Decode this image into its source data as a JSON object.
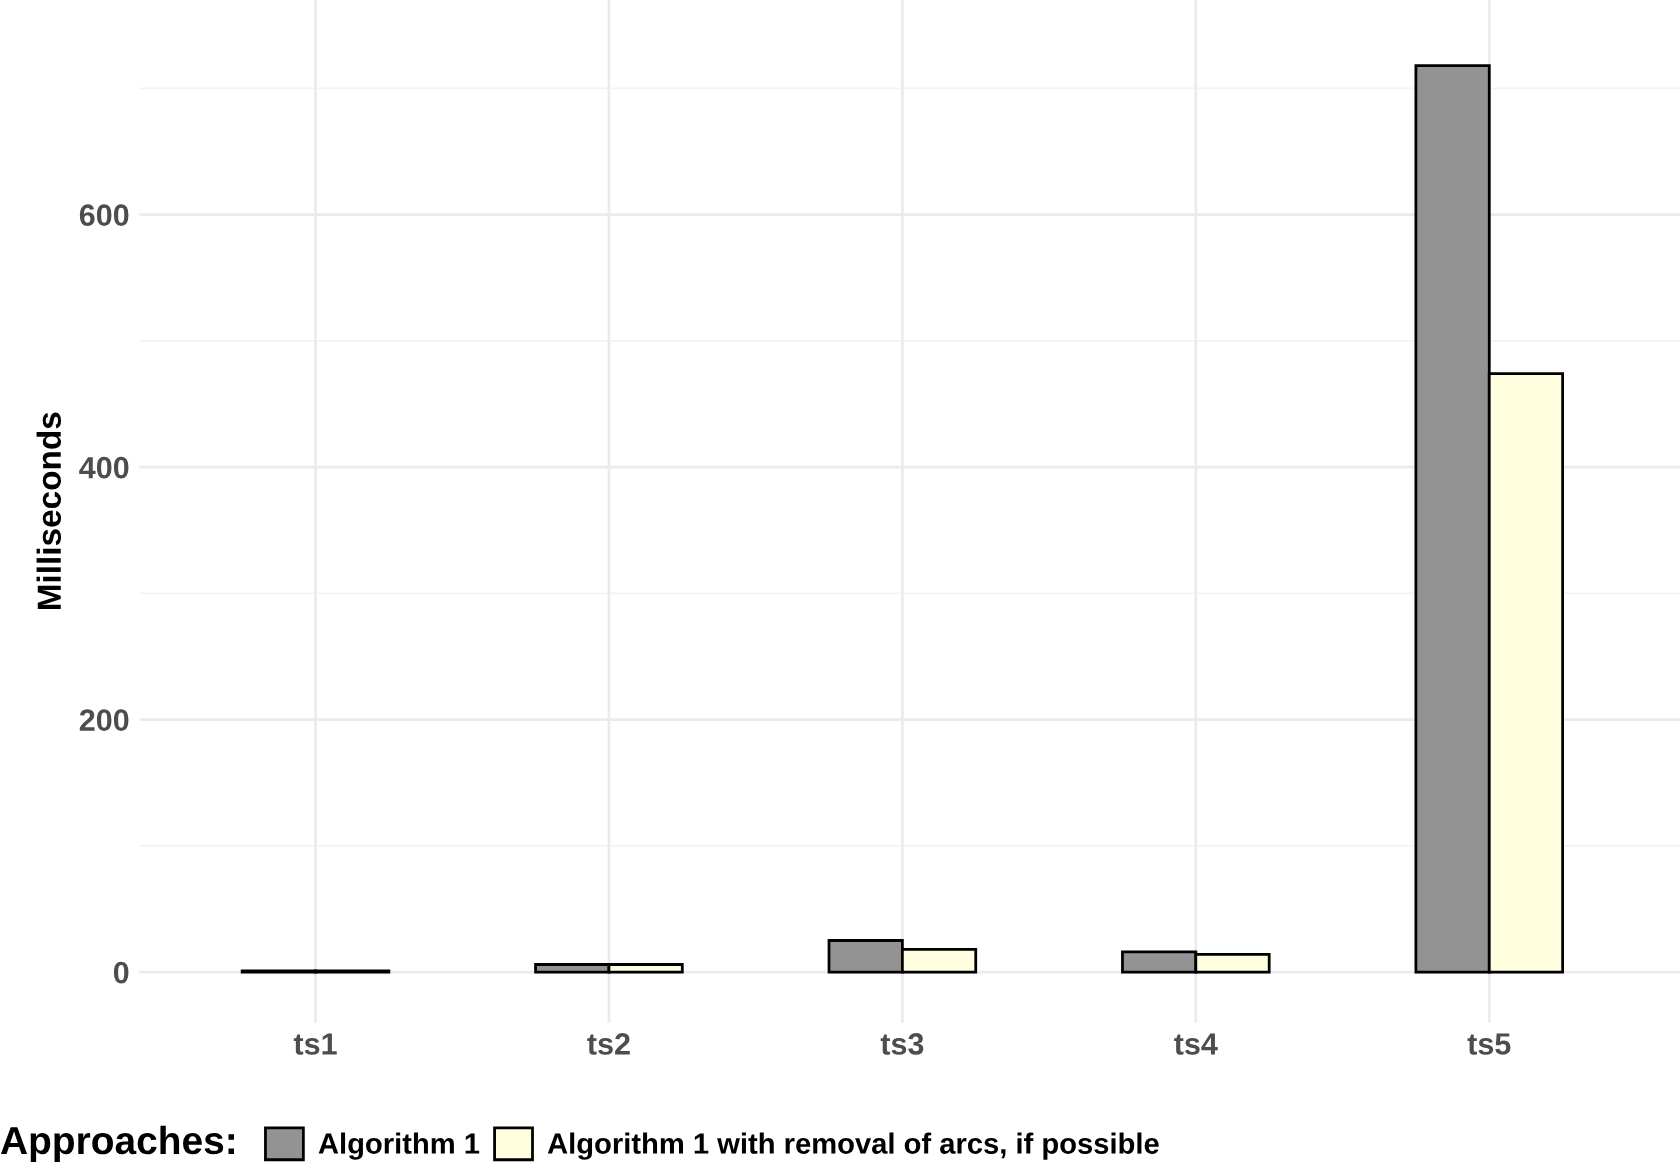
{
  "chart_data": {
    "type": "bar",
    "ylabel": "Milliseconds",
    "legend_title": "Approaches:",
    "categories": [
      "ts1",
      "ts2",
      "ts3",
      "ts4",
      "ts5"
    ],
    "series": [
      {
        "name": "Algorithm 1",
        "color": "#939393",
        "values": [
          1,
          6,
          25,
          16,
          718
        ]
      },
      {
        "name": "Algorithm 1 with removal of arcs, if possible",
        "color": "#ffffe0",
        "values": [
          1,
          6,
          18,
          14,
          474
        ]
      }
    ],
    "ylim": [
      -40,
      770
    ],
    "yticks": [
      0,
      200,
      400,
      600
    ],
    "grid": true,
    "legend": "bottom"
  }
}
